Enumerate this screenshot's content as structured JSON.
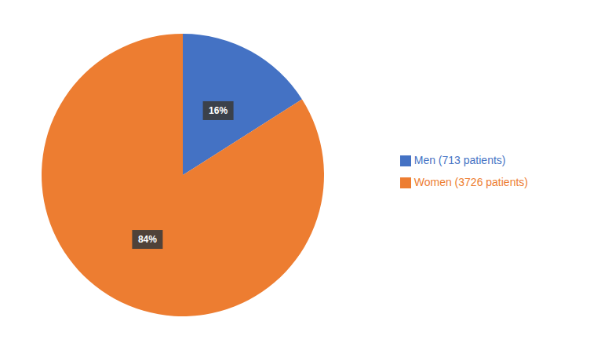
{
  "chart_data": {
    "type": "pie",
    "categories": [
      "Men (713 patients)",
      "Women (3726 patients)"
    ],
    "values": [
      16,
      84
    ],
    "value_labels": [
      "16%",
      "84%"
    ],
    "colors": [
      "#4472c4",
      "#ed7d31"
    ],
    "data_labels": true,
    "legend": "right"
  }
}
